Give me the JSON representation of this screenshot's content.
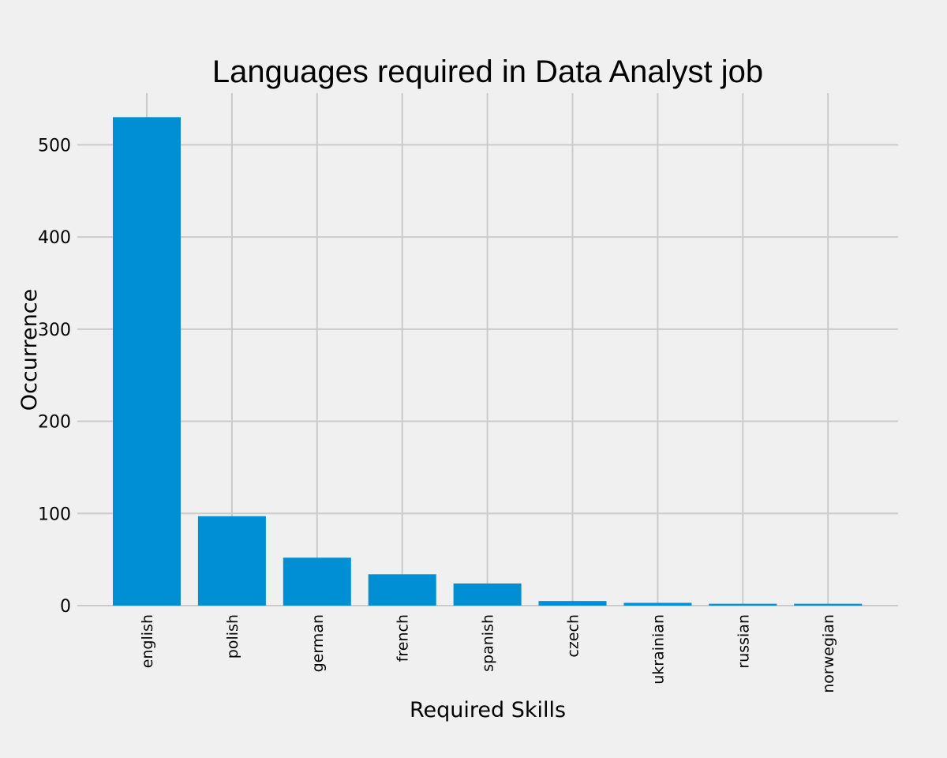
{
  "chart_data": {
    "type": "bar",
    "title": "Languages required in Data Analyst job",
    "xlabel": "Required Skills",
    "ylabel": "Occurrence",
    "categories": [
      "english",
      "polish",
      "german",
      "french",
      "spanish",
      "czech",
      "ukrainian",
      "russian",
      "norwegian"
    ],
    "values": [
      530,
      97,
      52,
      34,
      24,
      5,
      3,
      2,
      2
    ],
    "ylim": [
      0,
      556
    ],
    "yticks": [
      0,
      100,
      200,
      300,
      400,
      500
    ],
    "grid": true,
    "bar_color": "#008fd5",
    "background_color": "#f0f0f0",
    "grid_color": "#cbcbcb"
  }
}
